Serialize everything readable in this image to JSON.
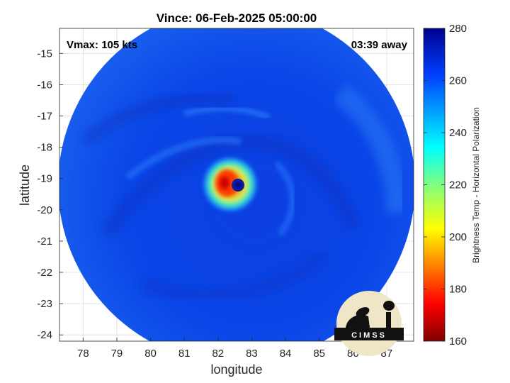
{
  "chart_data": {
    "type": "heatmap",
    "title": "Vince: 06-Feb-2025 05:00:00",
    "xlabel": "longitude",
    "ylabel": "latitude",
    "xlim": [
      77.3,
      87.8
    ],
    "ylim": [
      -24.2,
      -14.2
    ],
    "xticks": [
      "78",
      "79",
      "80",
      "81",
      "82",
      "83",
      "84",
      "85",
      "86",
      "87"
    ],
    "yticks": [
      "-15",
      "-16",
      "-17",
      "-18",
      "-19",
      "-20",
      "-21",
      "-22",
      "-23",
      "-24"
    ],
    "grid": true,
    "annotations": {
      "vmax": "Vmax: 105 kts",
      "away": "03:39 away"
    },
    "eye_center": {
      "lon": 82.55,
      "lat": -19.2
    },
    "colorbar": {
      "label": "Brightness Temp - Horizontal Polarization",
      "range": [
        160,
        280
      ],
      "ticks": [
        "280",
        "260",
        "240",
        "220",
        "200",
        "180",
        "160"
      ],
      "colormap": "jet"
    },
    "logo_text": "CIMSS"
  }
}
